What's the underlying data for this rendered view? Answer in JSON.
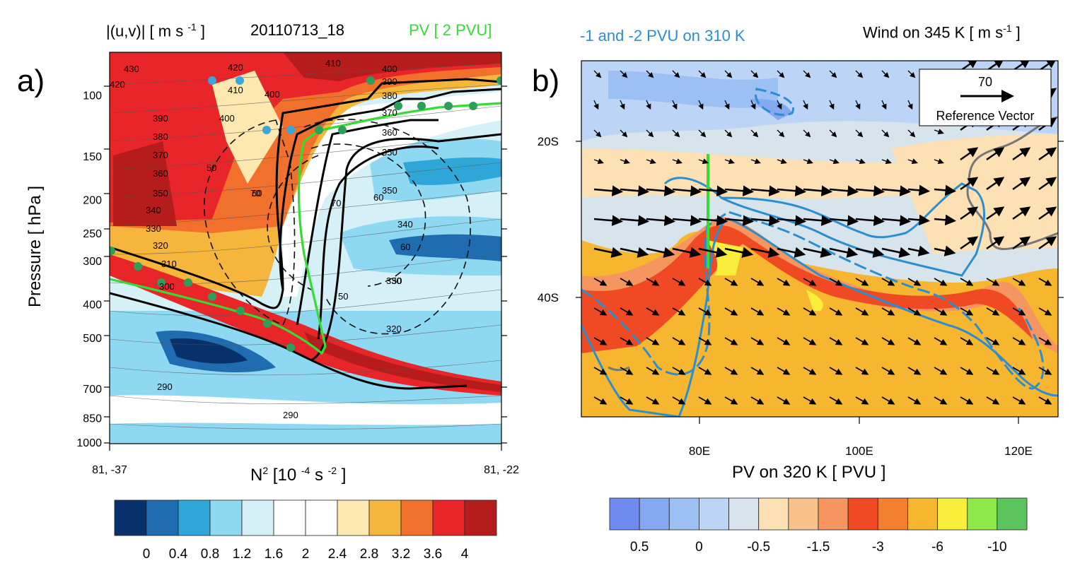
{
  "panel_a": {
    "letter": "a)",
    "title_left": "|(u,v)| [ m s -1 ]",
    "title_center": "20110713_18",
    "title_right": "PV [ 2 PVU]",
    "ylabel": "Pressure [ hPa ]",
    "xlabel": "N2 [10 -4 s -2 ]",
    "colors": {
      "pv_line": "#33dd33",
      "dot_green": "#2e9e5a",
      "dot_blue": "#3aa6dc"
    }
  },
  "panel_b": {
    "letter": "b)",
    "title_left": "-1 and -2 PVU on 310 K",
    "title_right": "Wind on 345 K [ m s-1 ]",
    "xlabel": "PV on 320 K [ PVU ]",
    "ref_vector_value": "70",
    "ref_vector_label": "Reference Vector",
    "colors": {
      "pvu_contour": "#2b8fcf",
      "section_line": "#33dd33",
      "coast": "#777777"
    }
  },
  "chart_data": [
    {
      "type": "heatmap",
      "panel": "a",
      "title": "20110713_18",
      "ylabel": "Pressure [ hPa ]",
      "xlabel": "N2 [10 -4 s -2 ]",
      "x_tick_labels": [
        "81, -37",
        "81, -22"
      ],
      "y_scale": "log",
      "y_ticks": [
        100,
        150,
        200,
        250,
        300,
        400,
        500,
        700,
        850,
        1000
      ],
      "ylim": [
        1000,
        75
      ],
      "colorbar": {
        "labels": [
          "0",
          "0.4",
          "0.8",
          "1.2",
          "1.6",
          "2",
          "2.4",
          "2.8",
          "3.2",
          "3.6",
          "4"
        ],
        "colors": [
          "#08306b",
          "#1f6db0",
          "#2fa6d8",
          "#8fd8f2",
          "#d5f0f7",
          "#ffffff",
          "#ffffff",
          "#fde8b0",
          "#f6b53c",
          "#f1702c",
          "#e8262a",
          "#b71c1c"
        ]
      },
      "theta_labels": [
        "430",
        "420",
        "410",
        "420",
        "410",
        "400",
        "390",
        "380",
        "370",
        "360",
        "350",
        "340",
        "330",
        "320",
        "310",
        "300",
        "290",
        "290",
        "400",
        "390",
        "380",
        "370",
        "360",
        "350",
        "340",
        "330",
        "320",
        "310",
        "300"
      ],
      "wind_contour_labels": [
        "50",
        "60",
        "70",
        "70",
        "60",
        "50",
        "60",
        "50"
      ],
      "pv_contour": "PV [ 2 PVU]"
    },
    {
      "type": "heatmap",
      "panel": "b",
      "title": "PV on 320 K [ PVU ]",
      "x_ticks": [
        "80E",
        "100E",
        "120E"
      ],
      "y_ticks": [
        "20S",
        "40S"
      ],
      "colorbar": {
        "labels": [
          "0.5",
          "0",
          "-0.5",
          "-1.5",
          "-3",
          "-6",
          "-10"
        ],
        "colors": [
          "#6e8cf0",
          "#84a8f2",
          "#9dc0f4",
          "#bcd4f6",
          "#d8e4ec",
          "#fde0b4",
          "#f8c28a",
          "#f59660",
          "#ef4a24",
          "#f17f2e",
          "#f6b630",
          "#f9ee3c",
          "#8fe84a",
          "#5cc45c"
        ]
      },
      "reference_vector": {
        "value": 70,
        "label": "Reference Vector"
      },
      "overlays": [
        "-1 and -2 PVU on 310 K",
        "Wind on 345 K"
      ]
    }
  ]
}
